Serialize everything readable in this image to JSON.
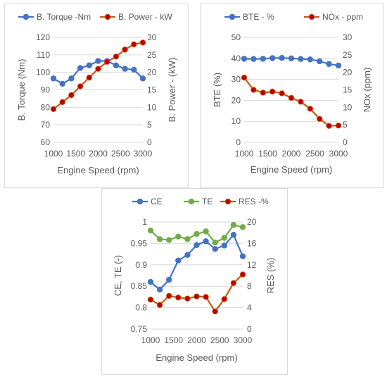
{
  "chart_data": [
    {
      "type": "line",
      "x": [
        1000,
        1200,
        1400,
        1600,
        1800,
        2000,
        2200,
        2400,
        2600,
        2800,
        3000
      ],
      "xticks": [
        "1000",
        "1500",
        "2000",
        "2500",
        "3000"
      ],
      "xtick_values": [
        1000,
        1500,
        2000,
        2500,
        3000
      ],
      "xlim": [
        1000,
        3000
      ],
      "xlabel": "Engine Speed (rpm)",
      "ylabel": "B. Torque (Nm)",
      "y2label": "B. Power - (kW)",
      "ylim": [
        60,
        120
      ],
      "yticks": [
        "60",
        "70",
        "80",
        "90",
        "100",
        "110",
        "120"
      ],
      "y2lim": [
        0,
        30
      ],
      "y2ticks": [
        "0",
        "5",
        "10",
        "15",
        "20",
        "25",
        "30"
      ],
      "grid": true,
      "legend": "top",
      "series": [
        {
          "name": "B. Torque -Nm",
          "axis": "left",
          "color": "#4472c4",
          "values": [
            96.5,
            93.5,
            96.5,
            102.5,
            104,
            106.5,
            106.5,
            104,
            102,
            101.5,
            96.5
          ]
        },
        {
          "name": "B. Power - kW",
          "axis": "right",
          "color": "#c55a11",
          "marker": "#c00000",
          "values": [
            9.5,
            11.5,
            13.5,
            16,
            18.5,
            21,
            23,
            24.5,
            26.5,
            28,
            28.5
          ]
        }
      ]
    },
    {
      "type": "line",
      "x": [
        1000,
        1200,
        1400,
        1600,
        1800,
        2000,
        2200,
        2400,
        2600,
        2800,
        3000
      ],
      "xticks": [
        "1000",
        "1500",
        "2000",
        "2500",
        "3000"
      ],
      "xtick_values": [
        1000,
        1500,
        2000,
        2500,
        3000
      ],
      "xlim": [
        1000,
        3000
      ],
      "xlabel": "Engine Speed (rpm)",
      "ylabel": "BTE (%)",
      "y2label": "NOx (ppm)",
      "ylim": [
        0,
        50
      ],
      "yticks": [
        "0",
        "10",
        "20",
        "30",
        "40",
        "50"
      ],
      "y2lim": [
        0,
        30
      ],
      "y2ticks": [
        "0",
        "5",
        "10",
        "15",
        "20",
        "25",
        "30"
      ],
      "grid": true,
      "legend": "top",
      "series": [
        {
          "name": "BTE - %",
          "axis": "left",
          "color": "#4472c4",
          "values": [
            39.8,
            39.7,
            39.8,
            40.1,
            40.2,
            40,
            39.7,
            39.5,
            38.6,
            37.3,
            36.6
          ]
        },
        {
          "name": "NOx - ppm",
          "axis": "right",
          "color": "#c55a11",
          "marker": "#c00000",
          "values": [
            18.5,
            15,
            14.2,
            14.5,
            14,
            12.7,
            11.6,
            9.6,
            6.7,
            4.7,
            4.8
          ]
        }
      ]
    },
    {
      "type": "line",
      "x": [
        1000,
        1200,
        1400,
        1600,
        1800,
        2000,
        2200,
        2400,
        2600,
        2800,
        3000
      ],
      "xticks": [
        "1000",
        "1500",
        "2000",
        "2500",
        "3000"
      ],
      "xtick_values": [
        1000,
        1500,
        2000,
        2500,
        3000
      ],
      "xlim": [
        1000,
        3000
      ],
      "xlabel": "Engine Speed (rpm)",
      "ylabel": "CE, TE (-)",
      "y2label": "RES (%)",
      "ylim": [
        0.75,
        1
      ],
      "yticks": [
        "0.75",
        "0.8",
        "0.85",
        "0.9",
        "0.95",
        "1"
      ],
      "y2lim": [
        0,
        20
      ],
      "y2ticks": [
        "0",
        "4",
        "8",
        "12",
        "16",
        "20"
      ],
      "grid": true,
      "legend": "top",
      "series": [
        {
          "name": "CE",
          "axis": "left",
          "color": "#4472c4",
          "values": [
            0.86,
            0.842,
            0.865,
            0.91,
            0.923,
            0.946,
            0.955,
            0.937,
            0.945,
            0.97,
            0.92
          ]
        },
        {
          "name": "TE",
          "axis": "left",
          "color": "#70ad47",
          "marker": "#70ad47",
          "values": [
            0.98,
            0.96,
            0.958,
            0.966,
            0.96,
            0.972,
            0.978,
            0.952,
            0.963,
            0.993,
            0.988
          ]
        },
        {
          "name": "RES -%",
          "axis": "right",
          "color": "#c55a11",
          "marker": "#c00000",
          "values": [
            5.5,
            4.5,
            6.2,
            5.9,
            5.7,
            6.1,
            6,
            3.3,
            5.6,
            8.6,
            10.2
          ]
        }
      ]
    }
  ]
}
